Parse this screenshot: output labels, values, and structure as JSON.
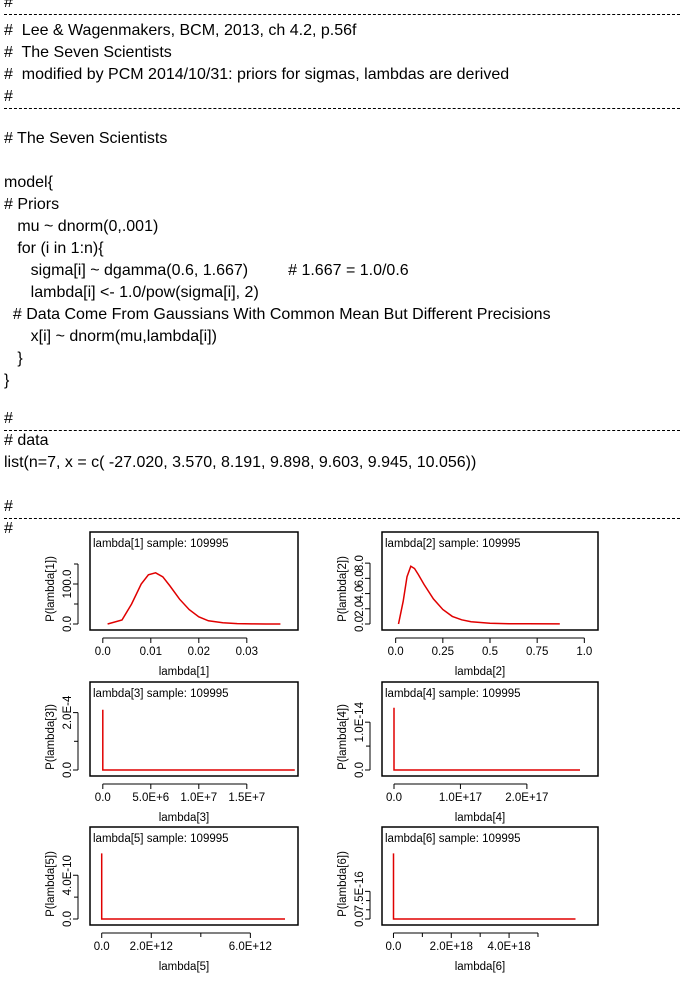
{
  "code_lines": [
    "#",
    "#  Lee & Wagenmakers, BCM, 2013, ch 4.2, p.56f",
    "#  The Seven Scientists",
    "#  modified by PCM 2014/10/31: priors for sigmas, lambdas are derived",
    "#",
    "",
    "# The Seven Scientists",
    "",
    "model{",
    "# Priors",
    "   mu ~ dnorm(0,.001)",
    "   for (i in 1:n){",
    "      sigma[i] ~ dgamma(0.6, 1.667)         # 1.667 = 1.0/0.6",
    "      lambda[i] <- 1.0/pow(sigma[i], 2)",
    "  # Data Come From Gaussians With Common Mean But Different Precisions",
    "      x[i] ~ dnorm(mu,lambda[i])",
    "   }",
    "}",
    "",
    "#",
    "# data",
    "list(n=7, x = c( -27.020, 3.570, 8.191, 9.898, 9.603, 9.945, 10.056))",
    "",
    "#",
    "#"
  ],
  "chart_data": [
    {
      "type": "line",
      "title": "lambda[1] sample: 109995",
      "xlabel": "lambda[1]",
      "ylabel": "P(lambda[1])",
      "xticks": [
        "0.0",
        "0.01",
        "0.02",
        "0.03"
      ],
      "yticks": [
        "0.0",
        "100.0"
      ],
      "xlim": [
        -0.001,
        0.039
      ],
      "ylim": [
        0,
        175
      ],
      "x": [
        0.001,
        0.004,
        0.006,
        0.008,
        0.0095,
        0.011,
        0.0125,
        0.014,
        0.016,
        0.018,
        0.02,
        0.022,
        0.025,
        0.028,
        0.031,
        0.034,
        0.037
      ],
      "y": [
        0,
        10,
        50,
        100,
        123,
        128,
        118,
        95,
        62,
        36,
        18,
        8,
        3,
        1,
        0.3,
        0.1,
        0.05
      ],
      "color": "#e00000"
    },
    {
      "type": "line",
      "title": "lambda[2] sample: 109995",
      "xlabel": "lambda[2]",
      "ylabel": "P(lambda[2])",
      "xticks": [
        "0.0",
        "0.25",
        "0.5",
        "0.75",
        "1.0"
      ],
      "yticks": [
        "0.0",
        "2.0",
        "4.0",
        "6.0",
        "8.0"
      ],
      "xlim": [
        -0.03,
        1.03
      ],
      "ylim": [
        0,
        9.2
      ],
      "x": [
        0.015,
        0.04,
        0.06,
        0.08,
        0.1,
        0.12,
        0.15,
        0.2,
        0.25,
        0.3,
        0.35,
        0.4,
        0.5,
        0.6,
        0.7,
        0.87
      ],
      "y": [
        0,
        3.0,
        6.2,
        7.6,
        7.3,
        6.5,
        5.2,
        3.3,
        1.9,
        1.0,
        0.55,
        0.3,
        0.1,
        0.04,
        0.02,
        0.01
      ],
      "color": "#e00000"
    },
    {
      "type": "line",
      "title": "lambda[3] sample: 109995",
      "xlabel": "lambda[3]",
      "ylabel": "P(lambda[3])",
      "xticks": [
        "0.0",
        "5.0E+6",
        "1.0E+7",
        "1.5E+7"
      ],
      "yticks": [
        "0.0",
        "2.0E-4"
      ],
      "xlim": [
        -500000.0,
        19500000.0
      ],
      "ylim": [
        0,
        0.00023
      ],
      "x": [
        0,
        0,
        20000000
      ],
      "y": [
        0.00021,
        0,
        0
      ],
      "color": "#e00000"
    },
    {
      "type": "line",
      "title": "lambda[4] sample: 109995",
      "xlabel": "lambda[4]",
      "ylabel": "P(lambda[4])",
      "xticks": [
        "0.0",
        "1.0E+17",
        "2.0E+17"
      ],
      "yticks": [
        "0.0",
        "1.0E-14"
      ],
      "xlim": [
        -6000000000000000.0,
        2.95e+17
      ],
      "ylim": [
        0,
        1.38e-14
      ],
      "x": [
        0,
        0,
        2.8e+17
      ],
      "y": [
        1.3e-14,
        0,
        0
      ],
      "color": "#e00000"
    },
    {
      "type": "line",
      "title": "lambda[5] sample: 109995",
      "xlabel": "lambda[5]",
      "ylabel": "P(lambda[5])",
      "xticks": [
        "0.0",
        "2.0E+12",
        "6.0E+12"
      ],
      "yticks": [
        "0.0",
        "4.0E-10"
      ],
      "xlim": [
        -150000000000.0,
        7600000000000.0
      ],
      "ylim": [
        0,
        6.4e-10
      ],
      "x": [
        0,
        0,
        7400000000000.0
      ],
      "y": [
        6e-10,
        0,
        0
      ],
      "color": "#e00000"
    },
    {
      "type": "line",
      "title": "lambda[6] sample: 109995",
      "xlabel": "lambda[6]",
      "ylabel": "P(lambda[6])",
      "xticks": [
        "0.0",
        "2.0E+18",
        "4.0E+18"
      ],
      "yticks": [
        "0.0",
        "7.5E-16"
      ],
      "xlim": [
        -1.2e+17,
        6.8e+18
      ],
      "ylim": [
        0,
        1.9e-15
      ],
      "x": [
        0,
        0,
        6.3e+18
      ],
      "y": [
        1.78e-15,
        0,
        0
      ],
      "color": "#e00000"
    }
  ]
}
